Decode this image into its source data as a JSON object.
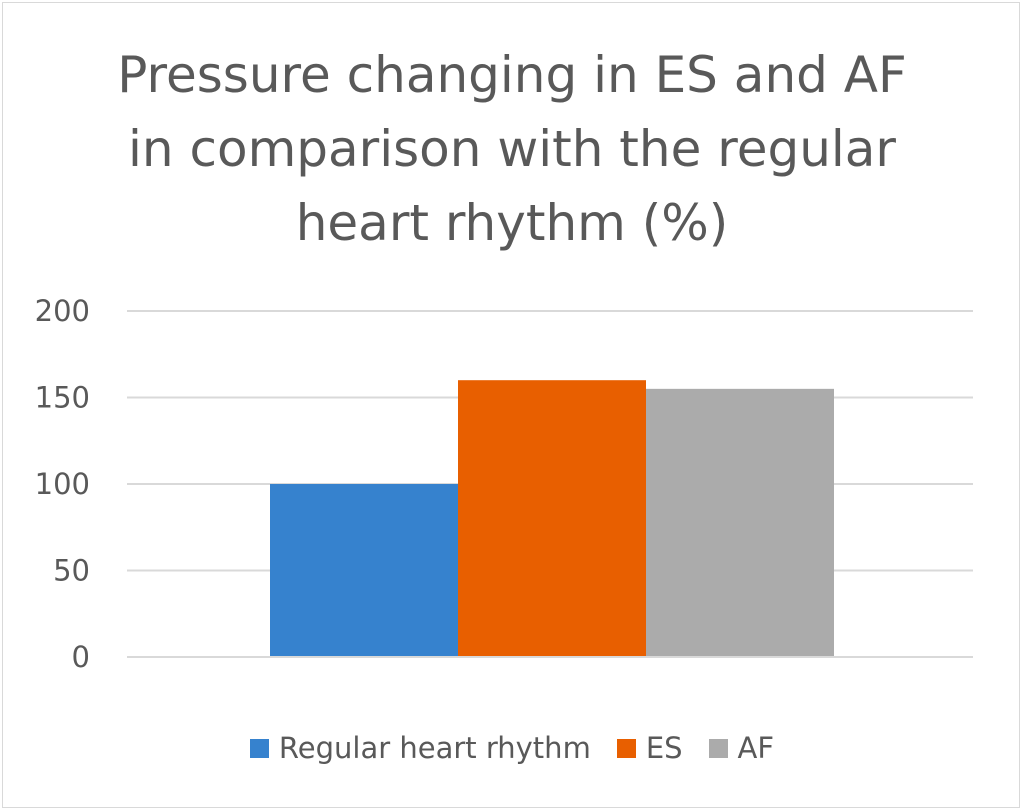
{
  "chart_data": {
    "type": "bar",
    "title_lines": [
      "Pressure changing in ES and AF",
      "in comparison with the regular",
      "heart rhythm (%)"
    ],
    "title": "Pressure changing in ES and AF in comparison with the regular heart rhythm (%)",
    "categories": [
      ""
    ],
    "series": [
      {
        "name": "Regular heart rhythm",
        "values": [
          100
        ],
        "color": "#3682ce"
      },
      {
        "name": "ES",
        "values": [
          160
        ],
        "color": "#e85f00"
      },
      {
        "name": "AF",
        "values": [
          155
        ],
        "color": "#ababab"
      }
    ],
    "yticks": [
      "0",
      "50",
      "100",
      "150",
      "200"
    ],
    "ylim": [
      0,
      200
    ],
    "grid": true,
    "legend_position": "bottom"
  }
}
